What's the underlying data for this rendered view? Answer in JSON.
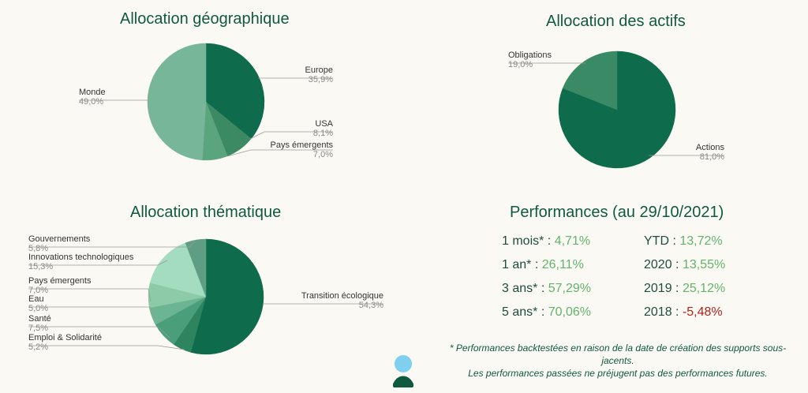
{
  "chart_data": [
    {
      "type": "pie",
      "title": "Allocation géographique",
      "slices": [
        {
          "label": "Europe",
          "value": 35.9,
          "display": "35,9%",
          "color": "#0e6b4b"
        },
        {
          "label": "USA",
          "value": 8.1,
          "display": "8,1%",
          "color": "#3b8a64"
        },
        {
          "label": "Pays émergents",
          "value": 7.0,
          "display": "7,0%",
          "color": "#5aa57e"
        },
        {
          "label": "Monde",
          "value": 49.0,
          "display": "49,0%",
          "color": "#78b69a"
        }
      ]
    },
    {
      "type": "pie",
      "title": "Allocation des actifs",
      "slices": [
        {
          "label": "Actions",
          "value": 81.0,
          "display": "81,0%",
          "color": "#0e6b4b"
        },
        {
          "label": "Obligations",
          "value": 19.0,
          "display": "19,0%",
          "color": "#3a8a66"
        }
      ]
    },
    {
      "type": "pie",
      "title": "Allocation thématique",
      "slices": [
        {
          "label": "Transition écologique",
          "value": 54.3,
          "display": "54,3%",
          "color": "#0e6b4b"
        },
        {
          "label": "Emploi & Solidarité",
          "value": 5.2,
          "display": "5,2%",
          "color": "#2f8460"
        },
        {
          "label": "Santé",
          "value": 7.5,
          "display": "7,5%",
          "color": "#4b9e7a"
        },
        {
          "label": "Eau",
          "value": 5.0,
          "display": "5,0%",
          "color": "#6cb593"
        },
        {
          "label": "Pays émergents",
          "value": 7.0,
          "display": "7,0%",
          "color": "#8ccaa8"
        },
        {
          "label": "Innovations technologiques",
          "value": 15.3,
          "display": "15,3%",
          "color": "#a4dcc0"
        },
        {
          "label": "Gouvernements",
          "value": 5.8,
          "display": "5,8%",
          "color": "#5f9e85"
        }
      ]
    }
  ],
  "performance": {
    "title": "Performances (au 29/10/2021)",
    "rows_left": [
      {
        "label": "1 mois*",
        "value": "4,71%",
        "sign": "pos"
      },
      {
        "label": "1 an*",
        "value": "26,11%",
        "sign": "pos"
      },
      {
        "label": "3 ans*",
        "value": "57,29%",
        "sign": "pos"
      },
      {
        "label": "5 ans*",
        "value": "70,06%",
        "sign": "pos"
      }
    ],
    "rows_right": [
      {
        "label": "YTD",
        "value": "13,72%",
        "sign": "pos"
      },
      {
        "label": "2020",
        "value": "13,55%",
        "sign": "pos"
      },
      {
        "label": "2019",
        "value": "25,12%",
        "sign": "pos"
      },
      {
        "label": "2018",
        "value": "-5,48%",
        "sign": "neg"
      }
    ],
    "separator": " : ",
    "footnote_line1": "* Performances backtestées en raison de la date de création des supports sous-jacents.",
    "footnote_line2": "Les performances passées ne préjugent pas des performances futures."
  },
  "colors": {
    "title_green": "#0f5a3f",
    "positive": "#63b36b",
    "negative": "#b8211b",
    "logo_sky": "#7fd0f0",
    "logo_hill": "#0f5a3f"
  }
}
